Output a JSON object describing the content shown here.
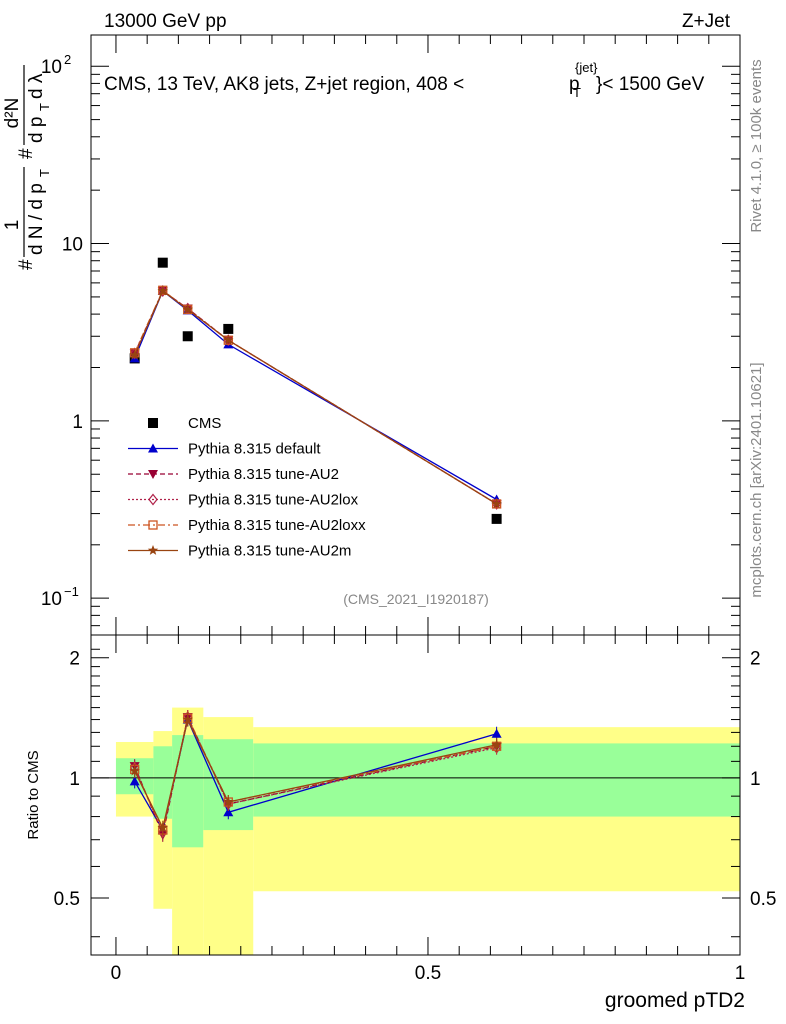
{
  "header": {
    "left": "13000 GeV pp",
    "right": "Z+Jet"
  },
  "side": {
    "rivet": "Rivet 4.1.0, ≥ 100k events",
    "mcplots": "mcplots.cern.ch [arXiv:2401.10621]"
  },
  "colors": {
    "data": "#000000",
    "default": "#0000cc",
    "AU2": "#990033",
    "AU2lox": "#b0224a",
    "AU2loxx": "#cc5522",
    "AU2m": "#994411",
    "band_green": "#99ff99",
    "band_yellow": "#ffff88"
  },
  "chart_data": [
    {
      "type": "line",
      "panel": "main",
      "title": "CMS, 13 TeV, AK8 jets, Z+jet region, 408 < p_T^{jet} < 1500 GeV",
      "title_main": "CMS, 13 TeV, AK8 jets, Z+jet region, 408 <",
      "title_p": "p",
      "title_sub": "T",
      "title_sup": "{jet}",
      "title_tail": "}< 1500 GeV",
      "ylabel": "1/dN/dp_T # d²N/dp_T dλ",
      "ylabel_parts": [
        "#",
        "1",
        "d N / d p",
        "T",
        "#",
        "d²N",
        "d p",
        "T",
        "d λ"
      ],
      "yscale": "log",
      "xlim": [
        -0.04,
        1.0
      ],
      "ylim": [
        0.062,
        150
      ],
      "yticks": [
        {
          "value": 100,
          "label": "10",
          "sup": "2"
        },
        {
          "value": 10,
          "label": "10",
          "sup": ""
        },
        {
          "value": 1,
          "label": "1",
          "sup": ""
        },
        {
          "value": 0.1,
          "label": "10",
          "sup": "−1"
        }
      ],
      "analysis_tag": "(CMS_2021_I1920187)",
      "x": [
        0.03,
        0.075,
        0.115,
        0.18,
        0.61
      ],
      "series": [
        {
          "name": "CMS",
          "key": "data",
          "marker": "square",
          "line": "none",
          "values": [
            2.25,
            7.8,
            3.0,
            3.3,
            0.28
          ]
        },
        {
          "name": "Pythia 8.315 default",
          "key": "default",
          "marker": "triangle-up",
          "line": "solid",
          "values": [
            2.25,
            5.4,
            4.2,
            2.7,
            0.36
          ]
        },
        {
          "name": "Pythia 8.315 tune-AU2",
          "key": "AU2",
          "marker": "triangle-down",
          "line": "dashed",
          "values": [
            2.4,
            5.4,
            4.3,
            2.85,
            0.34
          ]
        },
        {
          "name": "Pythia 8.315 tune-AU2lox",
          "key": "AU2lox",
          "marker": "diamond",
          "line": "dotted",
          "values": [
            2.4,
            5.4,
            4.3,
            2.85,
            0.34
          ]
        },
        {
          "name": "Pythia 8.315 tune-AU2loxx",
          "key": "AU2loxx",
          "marker": "square-open",
          "line": "dashdot",
          "values": [
            2.42,
            5.45,
            4.25,
            2.85,
            0.34
          ]
        },
        {
          "name": "Pythia 8.315 tune-AU2m",
          "key": "AU2m",
          "marker": "star",
          "line": "solid",
          "values": [
            2.35,
            5.4,
            4.25,
            2.85,
            0.34
          ]
        }
      ]
    },
    {
      "type": "line",
      "panel": "ratio",
      "ylabel": "Ratio to CMS",
      "xlabel": "groomed pTD2",
      "xlim": [
        -0.04,
        1.0
      ],
      "ylim": [
        0.36,
        2.28
      ],
      "yscale": "log",
      "yticks": [
        {
          "value": 2,
          "label": "2"
        },
        {
          "value": 1,
          "label": "1"
        },
        {
          "value": 0.5,
          "label": "0.5"
        }
      ],
      "xticks": [
        {
          "value": 0,
          "label": "0"
        },
        {
          "value": 0.5,
          "label": "0.5"
        },
        {
          "value": 1,
          "label": "1"
        }
      ],
      "bands": [
        {
          "x0": 0.0,
          "x1": 0.06,
          "green": [
            0.91,
            1.12
          ],
          "yellow": [
            0.8,
            1.23
          ]
        },
        {
          "x0": 0.06,
          "x1": 0.09,
          "green": [
            0.79,
            1.2
          ],
          "yellow": [
            0.47,
            1.31
          ]
        },
        {
          "x0": 0.09,
          "x1": 0.14,
          "green": [
            0.67,
            1.28
          ],
          "yellow": [
            0.35,
            1.5
          ]
        },
        {
          "x0": 0.14,
          "x1": 0.22,
          "green": [
            0.74,
            1.25
          ],
          "yellow": [
            0.36,
            1.42
          ]
        },
        {
          "x0": 0.22,
          "x1": 1.0,
          "green": [
            0.8,
            1.22
          ],
          "yellow": [
            0.52,
            1.34
          ]
        }
      ],
      "x": [
        0.03,
        0.075,
        0.115,
        0.18,
        0.61
      ],
      "series": [
        {
          "name": "Pythia 8.315 default",
          "key": "default",
          "marker": "triangle-up",
          "line": "solid",
          "values": [
            0.98,
            0.74,
            1.4,
            0.82,
            1.29
          ]
        },
        {
          "name": "Pythia 8.315 tune-AU2",
          "key": "AU2",
          "marker": "triangle-down",
          "line": "dashed",
          "values": [
            1.07,
            0.72,
            1.42,
            0.86,
            1.2
          ]
        },
        {
          "name": "Pythia 8.315 tune-AU2lox",
          "key": "AU2lox",
          "marker": "diamond",
          "line": "dotted",
          "values": [
            1.06,
            0.73,
            1.42,
            0.86,
            1.19
          ]
        },
        {
          "name": "Pythia 8.315 tune-AU2loxx",
          "key": "AU2loxx",
          "marker": "square-open",
          "line": "dashdot",
          "values": [
            1.05,
            0.74,
            1.41,
            0.87,
            1.2
          ]
        },
        {
          "name": "Pythia 8.315 tune-AU2m",
          "key": "AU2m",
          "marker": "star",
          "line": "solid",
          "values": [
            1.04,
            0.75,
            1.4,
            0.87,
            1.21
          ]
        }
      ]
    }
  ]
}
